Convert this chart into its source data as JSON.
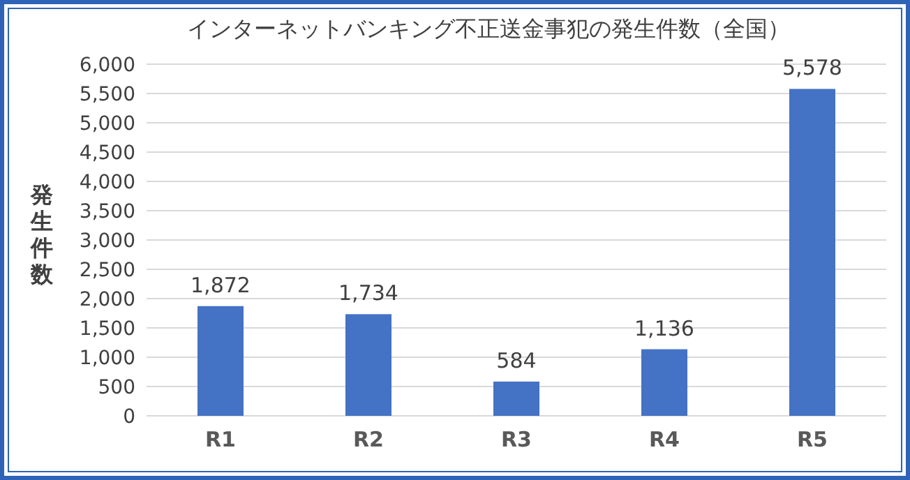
{
  "chart_data": {
    "type": "bar",
    "title": "インターネットバンキング不正送金事犯の発生件数（全国）",
    "ylabel": "発生件数",
    "categories": [
      "R1",
      "R2",
      "R3",
      "R4",
      "R5"
    ],
    "values": [
      1872,
      1734,
      584,
      1136,
      5578
    ],
    "value_labels": [
      "1,872",
      "1,734",
      "584",
      "1,136",
      "5,578"
    ],
    "color": "#4472c4",
    "ylim": [
      0,
      6000
    ],
    "yticks": [
      {
        "value": 0,
        "label": "0"
      },
      {
        "value": 500,
        "label": "500"
      },
      {
        "value": 1000,
        "label": "1,000"
      },
      {
        "value": 1500,
        "label": "1,500"
      },
      {
        "value": 2000,
        "label": "2,000"
      },
      {
        "value": 2500,
        "label": "2,500"
      },
      {
        "value": 3000,
        "label": "3,000"
      },
      {
        "value": 3500,
        "label": "3,500"
      },
      {
        "value": 4000,
        "label": "4,000"
      },
      {
        "value": 4500,
        "label": "4,500"
      },
      {
        "value": 5000,
        "label": "5,000"
      },
      {
        "value": 5500,
        "label": "5,500"
      },
      {
        "value": 6000,
        "label": "6,000"
      }
    ],
    "grid": "y"
  }
}
